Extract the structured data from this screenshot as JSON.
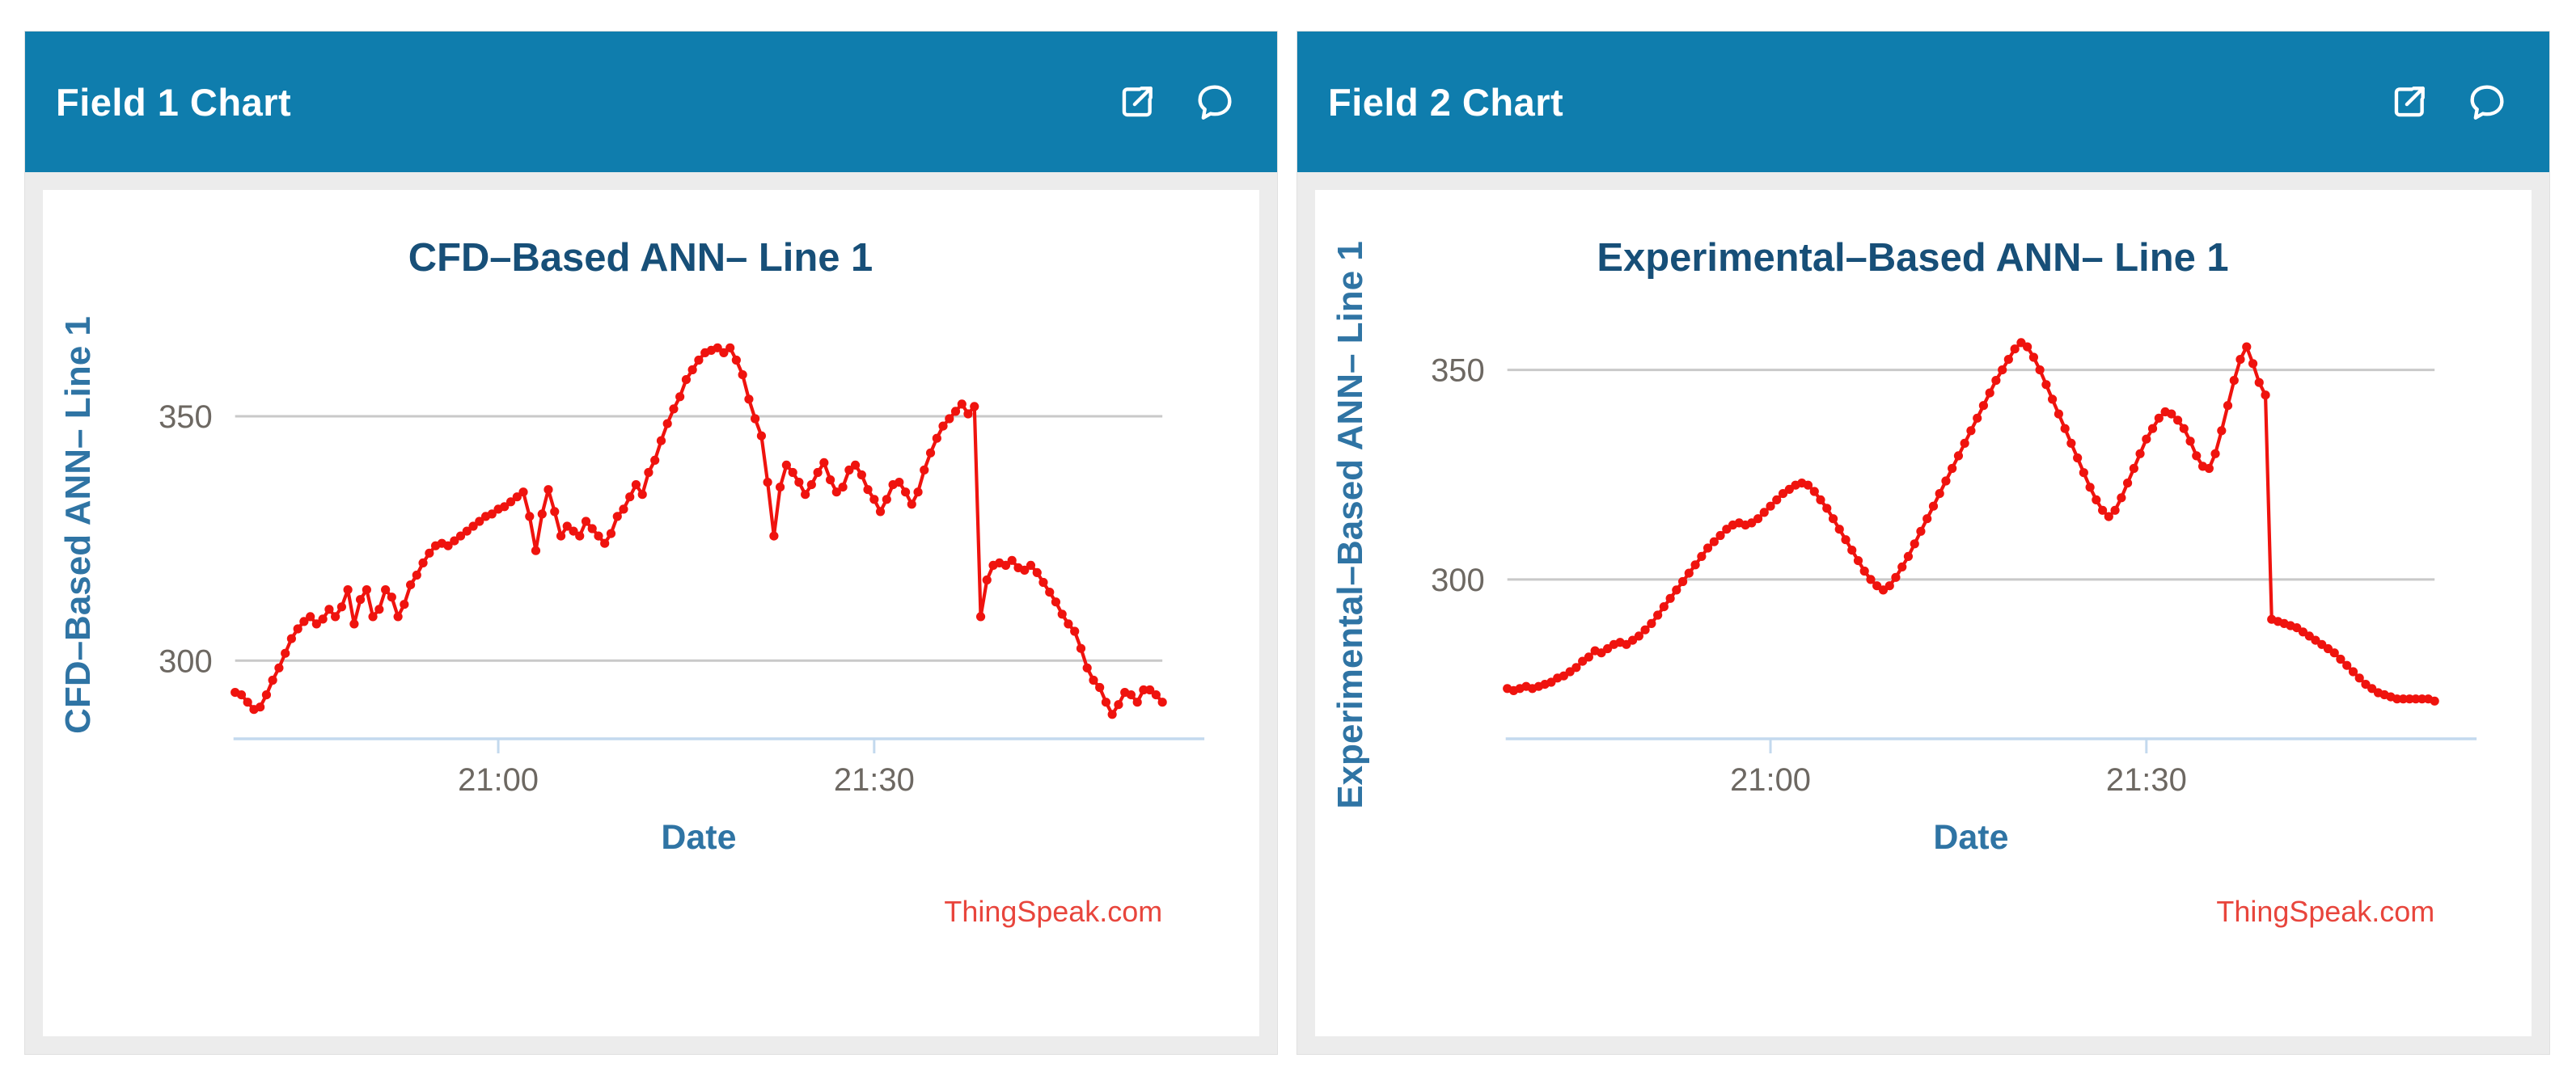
{
  "colors": {
    "header_bg": "#0f7dad",
    "header_text": "#ffffff",
    "panel_bg": "#ececec",
    "panel_border": "#e0e0e0",
    "chart_bg": "#ffffff",
    "page_bg": "#ffffff",
    "title": "#174f78",
    "axis_label": "#2f74a4",
    "tick_label": "#6d6862",
    "gridline": "#c9c9c9",
    "axis_line": "#c3d9ee",
    "series": "#ef130e",
    "watermark": "#e8453c"
  },
  "panels": [
    {
      "header": {
        "title": "Field 1 Chart",
        "icons": [
          "external-link-icon",
          "comment-icon"
        ]
      }
    },
    {
      "header": {
        "title": "Field 2 Chart",
        "icons": [
          "external-link-icon",
          "comment-icon"
        ]
      }
    }
  ],
  "chart_data": [
    {
      "type": "line",
      "title": "CFD–Based ANN– Line 1",
      "xlabel": "Date",
      "ylabel": "CFD–Based ANN– Line 1",
      "watermark": "ThingSpeak.com",
      "legend": "none",
      "grid": "horizontal",
      "x_start": "20:39",
      "x_step_seconds": 30,
      "x_range_minutes": [
        0,
        74
      ],
      "x_ticks": [
        {
          "label": "21:00",
          "minute": 21
        },
        {
          "label": "21:30",
          "minute": 51
        }
      ],
      "y_ticks": [
        300,
        350
      ],
      "ylim": [
        284,
        371.5
      ],
      "series": [
        {
          "name": "Line 1",
          "color": "#ef130e",
          "marker": "circle",
          "values": [
            293.5,
            293,
            291.5,
            290,
            290.5,
            293,
            296,
            298.5,
            301.5,
            304.5,
            306.5,
            308,
            309,
            307.5,
            308.5,
            310.5,
            309,
            311,
            314.5,
            307.5,
            312.5,
            314.5,
            309,
            310.5,
            314.5,
            313,
            309,
            311.5,
            315.5,
            317.5,
            320,
            322,
            323.5,
            324,
            323.5,
            324.5,
            325.5,
            326.5,
            327.5,
            328.5,
            329.5,
            330,
            331,
            331.5,
            332.5,
            333.5,
            334.5,
            329.5,
            322.5,
            330,
            335,
            330.5,
            325.5,
            327.5,
            326.5,
            325.5,
            328.5,
            327,
            325.5,
            324,
            326,
            329.5,
            331,
            333.5,
            336,
            334,
            338.5,
            341,
            345,
            348.5,
            351.5,
            354,
            357.5,
            359.5,
            361.5,
            363,
            363.5,
            364,
            363,
            364,
            361.5,
            358.5,
            353.5,
            349.5,
            346,
            336.5,
            325.5,
            335.5,
            340,
            338.5,
            336.5,
            334,
            336,
            338.5,
            340.5,
            337,
            334.5,
            335.5,
            339,
            340,
            338,
            335,
            333,
            330.5,
            333,
            336,
            336.5,
            334.5,
            332,
            334.5,
            339,
            342.5,
            345.5,
            348,
            349.5,
            351,
            352.5,
            350.5,
            352,
            309,
            316.5,
            319.5,
            320,
            319.5,
            320.5,
            319,
            318.5,
            319.5,
            318,
            316,
            314,
            312,
            309.5,
            307.5,
            306,
            302.5,
            298.5,
            296,
            294.5,
            291.5,
            289,
            291,
            293.5,
            293,
            291.5,
            294,
            294,
            293,
            291.5
          ]
        }
      ]
    },
    {
      "type": "line",
      "title": "Experimental–Based ANN– Line 1",
      "xlabel": "Date",
      "ylabel": "Experimental–Based ANN– Line 1",
      "watermark": "ThingSpeak.com",
      "legend": "none",
      "grid": "horizontal",
      "x_start": "20:39",
      "x_step_seconds": 30,
      "x_range_minutes": [
        0,
        74
      ],
      "x_ticks": [
        {
          "label": "21:00",
          "minute": 21
        },
        {
          "label": "21:30",
          "minute": 51
        }
      ],
      "y_ticks": [
        300,
        350
      ],
      "ylim": [
        262,
        364
      ],
      "series": [
        {
          "name": "Line 1",
          "color": "#ef130e",
          "marker": "circle",
          "values": [
            274,
            273.5,
            274,
            274.5,
            274,
            274.5,
            275,
            275.5,
            276.5,
            277,
            278,
            279,
            280.5,
            281.5,
            283,
            282.5,
            283.5,
            284.5,
            285,
            284.5,
            285.5,
            286.5,
            288,
            289.5,
            291.5,
            293.5,
            295.5,
            297.5,
            299.5,
            301.5,
            303.5,
            305.5,
            307.5,
            309,
            310.5,
            312,
            313,
            313.5,
            313,
            313.5,
            314.5,
            316,
            317.5,
            319,
            320.5,
            321.5,
            322.5,
            323,
            322.5,
            321,
            319,
            317,
            314.5,
            312,
            309.5,
            307,
            304.5,
            302,
            300,
            298.5,
            297.5,
            298.5,
            300.5,
            303,
            305.5,
            308.5,
            311.5,
            314.5,
            317.5,
            320.5,
            323.5,
            326.5,
            329.5,
            332.5,
            335.5,
            338.5,
            341.5,
            344.5,
            347.5,
            350,
            352.5,
            355,
            356.5,
            355.5,
            353,
            350,
            346.5,
            343,
            339.5,
            336,
            332.5,
            329,
            325.5,
            322,
            319,
            316.5,
            315,
            316.5,
            319.5,
            323,
            326.5,
            330,
            333.5,
            336,
            338.5,
            340,
            339.5,
            338,
            336,
            333,
            329.5,
            327,
            326.5,
            330,
            335.5,
            341.5,
            347.5,
            352.5,
            355.5,
            351.5,
            347,
            344,
            290.5,
            290,
            289.5,
            289,
            288.5,
            287.5,
            286.5,
            285.5,
            284.5,
            283.5,
            282.5,
            281,
            279.5,
            278,
            276.5,
            275,
            274,
            273,
            272.5,
            272,
            271.5,
            271.5,
            271.5,
            271.5,
            271.5,
            271.5,
            271
          ]
        }
      ]
    }
  ]
}
